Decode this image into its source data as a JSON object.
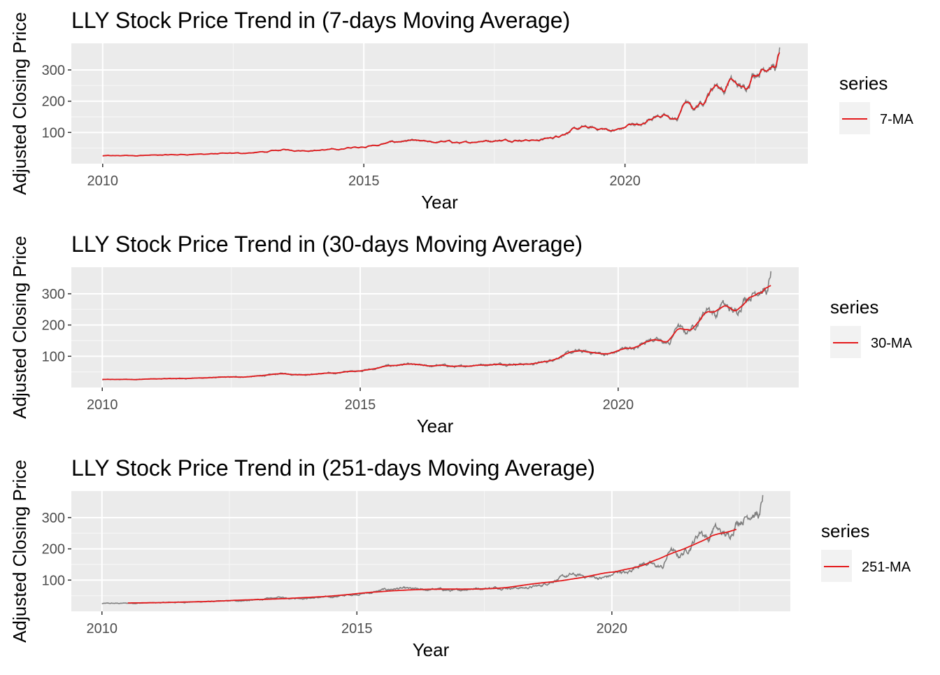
{
  "colors": {
    "panel_bg": "#ebebeb",
    "grid_major": "#ffffff",
    "grid_minor": "#f5f5f5",
    "ma_line": "#e41a1c",
    "price_line": "#7f7f7f",
    "tick_mark": "#333333"
  },
  "chart_data": [
    {
      "type": "line",
      "title": "LLY Stock Price Trend in (7-days Moving Average)",
      "xlabel": "Year",
      "ylabel": "Adjusted Closing Price",
      "xlim": [
        2009.4,
        2023.5
      ],
      "ylim": [
        0,
        385
      ],
      "x_ticks": [
        2010,
        2015,
        2020
      ],
      "y_ticks": [
        100,
        200,
        300
      ],
      "grid": true,
      "legend": {
        "title": "series",
        "position": "right",
        "entries": [
          {
            "label": "7-MA",
            "color": "#e41a1c"
          }
        ]
      },
      "ma_window": 7,
      "ma_start_year": 2010.0,
      "ma_end_year": 2022.96,
      "series": [
        {
          "name": "7-MA",
          "role": "ma",
          "color": "#e41a1c"
        }
      ]
    },
    {
      "type": "line",
      "title": "LLY Stock Price Trend in (30-days Moving Average)",
      "xlabel": "Year",
      "ylabel": "Adjusted Closing Price",
      "xlim": [
        2009.4,
        2023.5
      ],
      "ylim": [
        0,
        385
      ],
      "x_ticks": [
        2010,
        2015,
        2020
      ],
      "y_ticks": [
        100,
        200,
        300
      ],
      "grid": true,
      "legend": {
        "title": "series",
        "position": "right",
        "entries": [
          {
            "label": "30-MA",
            "color": "#e41a1c"
          }
        ]
      },
      "ma_window": 30,
      "ma_start_year": 2010.0,
      "ma_end_year": 2022.96,
      "series": [
        {
          "name": "30-MA",
          "role": "ma",
          "color": "#e41a1c"
        }
      ]
    },
    {
      "type": "line",
      "title": "LLY Stock Price Trend in (251-days Moving Average)",
      "xlabel": "Year",
      "ylabel": "Adjusted Closing Price",
      "xlim": [
        2009.4,
        2023.5
      ],
      "ylim": [
        0,
        385
      ],
      "x_ticks": [
        2010,
        2015,
        2020
      ],
      "y_ticks": [
        100,
        200,
        300
      ],
      "grid": true,
      "legend": {
        "title": "series",
        "position": "right",
        "entries": [
          {
            "label": "251-MA",
            "color": "#e41a1c"
          }
        ]
      },
      "ma_window": 251,
      "ma_start_year": 2010.5,
      "ma_end_year": 2022.45,
      "series": [
        {
          "name": "251-MA",
          "role": "ma",
          "color": "#e41a1c"
        }
      ]
    }
  ],
  "price_series": {
    "x": [
      2010.0,
      2010.5,
      2011.0,
      2011.5,
      2012.0,
      2012.5,
      2012.9,
      2013.2,
      2013.5,
      2013.7,
      2014.0,
      2014.5,
      2015.0,
      2015.3,
      2015.5,
      2015.8,
      2016.0,
      2016.3,
      2016.6,
      2016.9,
      2017.2,
      2017.5,
      2017.8,
      2018.0,
      2018.3,
      2018.6,
      2018.9,
      2019.0,
      2019.2,
      2019.5,
      2019.8,
      2020.0,
      2020.15,
      2020.3,
      2020.5,
      2020.7,
      2020.85,
      2021.0,
      2021.15,
      2021.3,
      2021.5,
      2021.75,
      2021.9,
      2022.0,
      2022.15,
      2022.3,
      2022.45,
      2022.6,
      2022.75,
      2022.9,
      2022.96
    ],
    "y": [
      25,
      26,
      27,
      29,
      31,
      33,
      35,
      39,
      45,
      43,
      42,
      46,
      55,
      60,
      68,
      73,
      72,
      68,
      71,
      65,
      73,
      74,
      76,
      76,
      75,
      82,
      102,
      106,
      116,
      112,
      106,
      115,
      130,
      120,
      150,
      155,
      145,
      140,
      200,
      175,
      200,
      260,
      230,
      270,
      250,
      238,
      290,
      300,
      320,
      305,
      365
    ]
  }
}
